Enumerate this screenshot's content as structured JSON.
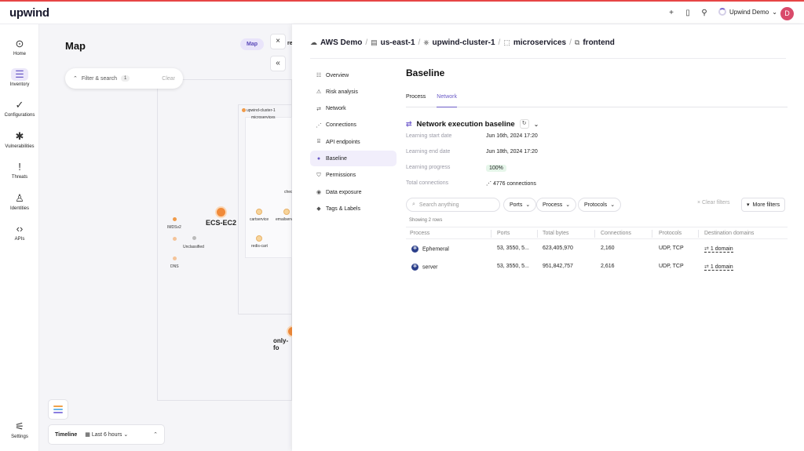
{
  "topbar": {
    "logo": "upwind",
    "icons": [
      "plus-icon",
      "book-icon",
      "runner-icon"
    ],
    "org_name": "Upwind Demo",
    "avatar_initial": "D"
  },
  "sidebar": {
    "items": [
      {
        "label": "Home",
        "icon": "⊙"
      },
      {
        "label": "Inventory",
        "icon": "☰"
      },
      {
        "label": "Configurations",
        "icon": "✓"
      },
      {
        "label": "Vulnerabilities",
        "icon": "✱"
      },
      {
        "label": "Threats",
        "icon": "!"
      },
      {
        "label": "Identities",
        "icon": "♙"
      },
      {
        "label": "APIs",
        "icon": "‹›"
      }
    ],
    "settings_label": "Settings"
  },
  "map": {
    "title": "Map",
    "badge": "Map",
    "badge_overflow": "re",
    "filter_label": "Filter & search",
    "filter_count": "1",
    "filter_clear": "Clear",
    "cluster_label": "upwind-cluster-1",
    "namespace_label": "microservices",
    "ec2_label": "ECS-EC2",
    "only_label": "only-fo",
    "nodes": [
      "IMDSv2",
      "Unclassified",
      "DNS"
    ],
    "services": [
      "cartservice",
      "emailserv",
      "redis-cart",
      "chec"
    ],
    "timeline_label": "Timeline",
    "timeline_range": "Last 6 hours"
  },
  "panel": {
    "breadcrumbs": [
      "AWS Demo",
      "us-east-1",
      "upwind-cluster-1",
      "microservices",
      "frontend"
    ],
    "subnav": [
      "Overview",
      "Risk analysis",
      "Network",
      "Connections",
      "API endpoints",
      "Baseline",
      "Permissions",
      "Data exposure",
      "Tags & Labels"
    ],
    "title": "Baseline",
    "tabs": [
      "Process",
      "Network"
    ],
    "section_title": "Network execution baseline",
    "fields": [
      {
        "k": "Learning start date",
        "v": "Jun 16th, 2024 17:20"
      },
      {
        "k": "Learning end date",
        "v": "Jun 18th, 2024 17:20"
      },
      {
        "k": "Learning progress",
        "v": "100%"
      },
      {
        "k": "Total connections",
        "v": "4776 connections"
      }
    ],
    "search_placeholder": "Search anything",
    "dropdowns": [
      "Ports",
      "Process",
      "Protocols"
    ],
    "clear_filters": "Clear filters",
    "more_filters": "More filters",
    "rows_note": "Showing 2 rows",
    "columns": [
      "Process",
      "Ports",
      "Total bytes",
      "Connections",
      "Protocols",
      "Destination domains"
    ],
    "rows": [
      {
        "process": "Ephemeral",
        "ports": "53, 3550, 5...",
        "bytes": "623,405,970",
        "connections": "2,160",
        "protocols": "UDP, TCP",
        "domains": "1 domain"
      },
      {
        "process": "server",
        "ports": "53, 3550, 5...",
        "bytes": "951,842,757",
        "connections": "2,616",
        "protocols": "UDP, TCP",
        "domains": "1 domain"
      }
    ]
  },
  "colors": {
    "accent": "#6b5bc7",
    "topline": "#e64545",
    "avatar": "#d94a6a",
    "node": "#f09b4a",
    "success": "#2a9d48"
  }
}
